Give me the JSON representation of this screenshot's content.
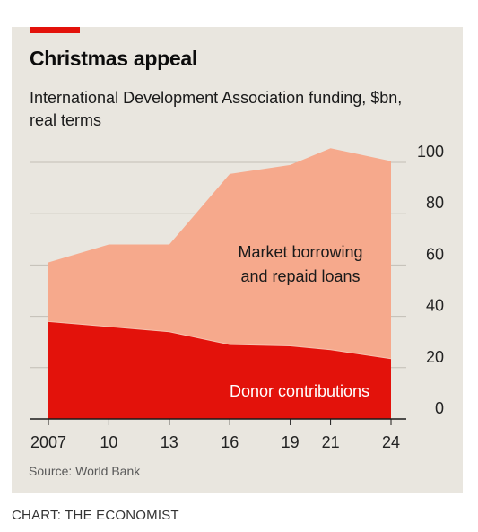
{
  "chart_data": {
    "type": "area",
    "title": "Christmas appeal",
    "subtitle": "International Development Association funding, $bn, real terms",
    "x_ticks": [
      "2007",
      "10",
      "13",
      "16",
      "19",
      "21",
      "24"
    ],
    "x": [
      2007,
      2010,
      2013,
      2016,
      2019,
      2021,
      2024
    ],
    "xlim": [
      2007,
      2024
    ],
    "ylim": [
      0,
      100
    ],
    "y_ticks": [
      "0",
      "20",
      "40",
      "60",
      "80",
      "100"
    ],
    "y_axis_side": "right",
    "grid": true,
    "stacked": true,
    "series": [
      {
        "name": "Donor contributions",
        "color": "#e3120b",
        "values": [
          38,
          36,
          34,
          29,
          28.5,
          27,
          23.5
        ]
      },
      {
        "name": "Market borrowing and repaid loans",
        "color": "#f6a98c",
        "values": [
          23,
          32,
          34,
          66.5,
          70.5,
          78.5,
          77
        ]
      }
    ],
    "series_labels": {
      "upper_line1": "Market borrowing",
      "upper_line2": "and repaid loans",
      "lower": "Donor contributions"
    },
    "source": "Source: World Bank"
  },
  "credit": "CHART: THE ECONOMIST"
}
